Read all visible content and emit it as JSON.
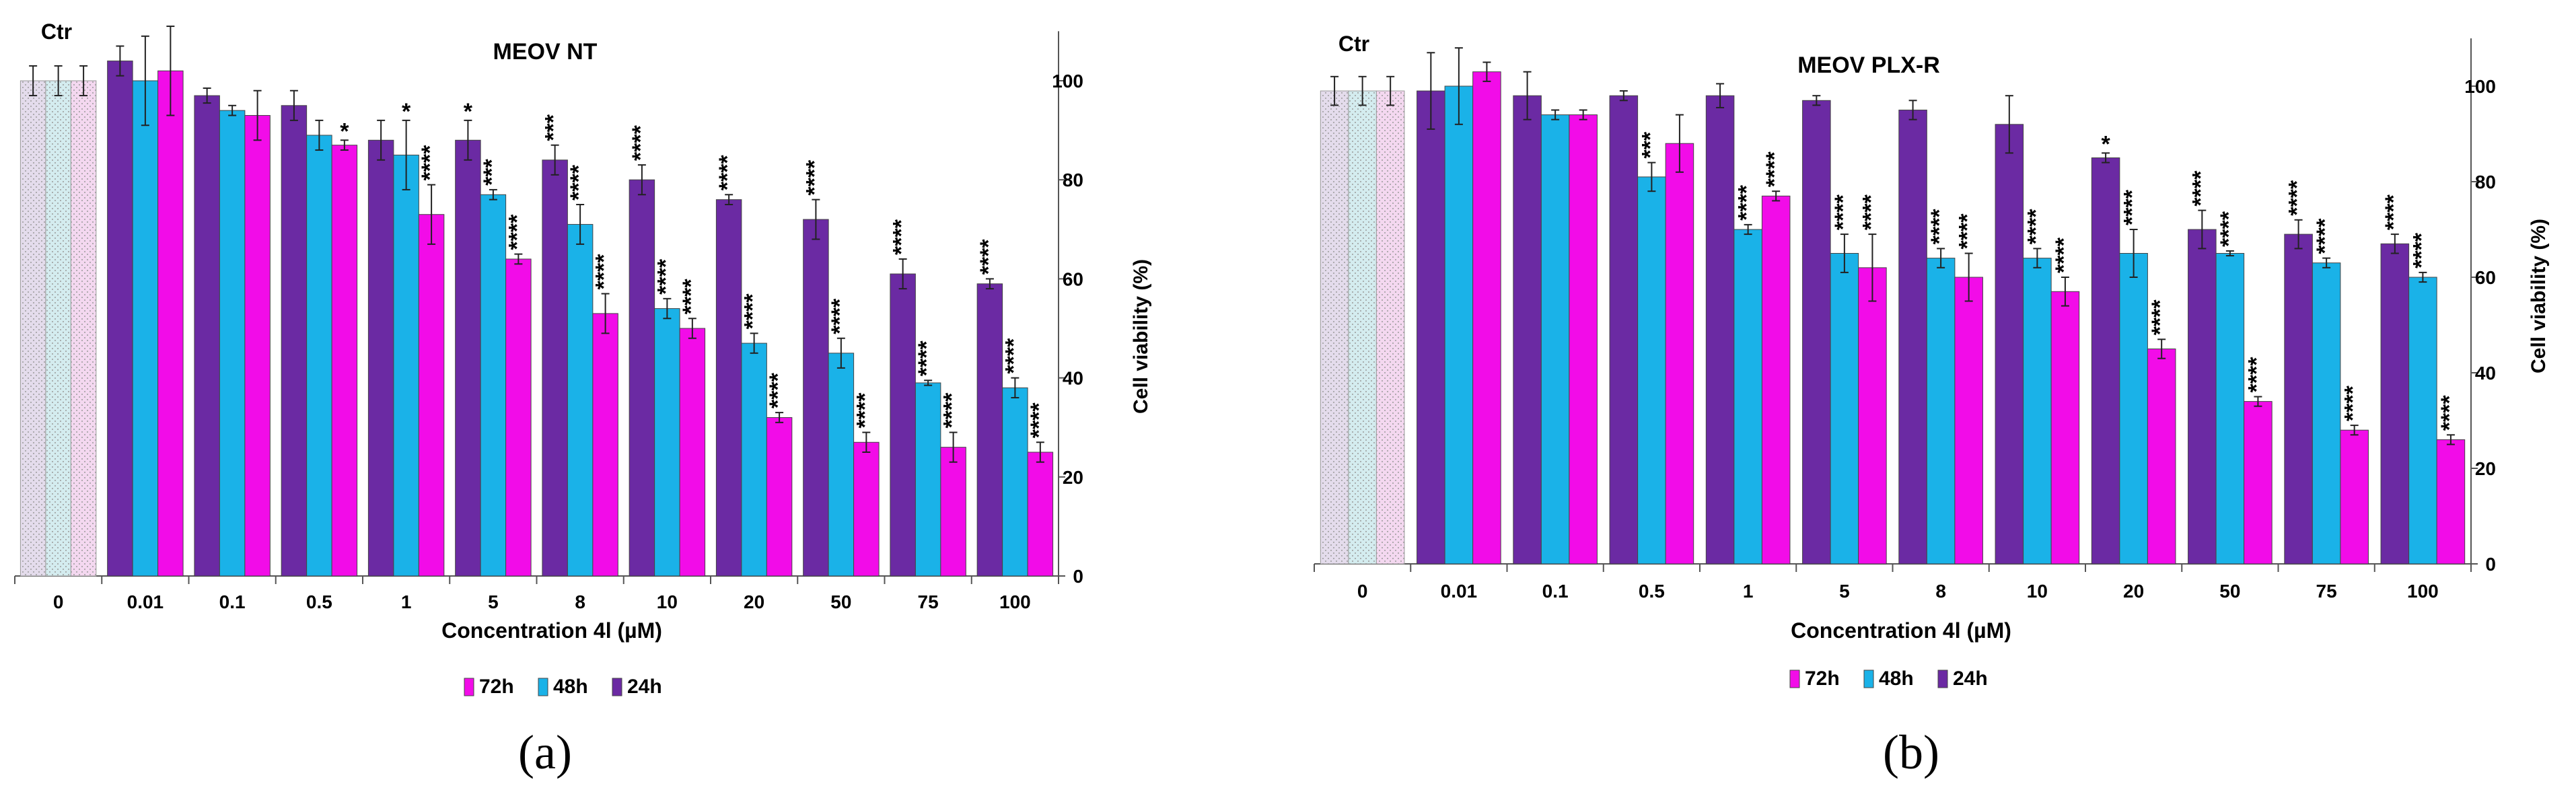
{
  "colors": {
    "h72": "#f20ce8",
    "h48": "#1ab2e8",
    "h24": "#6b2aa3",
    "ctr72": "#f4d8f0",
    "ctr48": "#d4ecef",
    "ctr24": "#e4dcec",
    "axis": "#555555"
  },
  "chart_data": [
    {
      "type": "bar",
      "panel": "(a)",
      "title": "MEOV NT",
      "xlabel": "Concentration 4l (µM)",
      "ylabel": "Cell viability (%)",
      "ylim": [
        0,
        110
      ],
      "yticks": [
        0,
        20,
        40,
        60,
        80,
        100
      ],
      "control_label": "Ctr",
      "categories": [
        "0",
        "0.01",
        "0.1",
        "0.5",
        "1",
        "5",
        "8",
        "10",
        "20",
        "50",
        "75",
        "100"
      ],
      "legend": [
        "72h",
        "48h",
        "24h"
      ],
      "series": [
        {
          "name": "24h",
          "values": [
            100,
            104,
            97,
            95,
            88,
            88,
            84,
            80,
            76,
            72,
            61,
            59
          ],
          "errors": [
            3,
            3,
            1.5,
            3,
            4,
            4,
            3,
            3,
            1,
            4,
            3,
            1
          ],
          "labels": [
            "",
            "",
            "",
            "",
            "",
            "*",
            "***",
            "****",
            "****",
            "****",
            "****",
            "****"
          ]
        },
        {
          "name": "48h",
          "values": [
            100,
            100,
            94,
            89,
            85,
            77,
            71,
            54,
            47,
            45,
            39,
            38
          ],
          "errors": [
            3,
            9,
            1,
            3,
            7,
            1,
            4,
            2,
            2,
            3,
            0.5,
            2
          ],
          "labels": [
            "",
            "",
            "",
            "",
            "*",
            "***",
            "****",
            "****",
            "****",
            "****",
            "****",
            "****"
          ]
        },
        {
          "name": "72h",
          "values": [
            100,
            102,
            93,
            87,
            73,
            64,
            53,
            50,
            32,
            27,
            26,
            25
          ],
          "errors": [
            3,
            9,
            5,
            1,
            6,
            1,
            4,
            2,
            1,
            2,
            3,
            2
          ],
          "labels": [
            "",
            "",
            "",
            "*",
            "****",
            "****",
            "****",
            "****",
            "****",
            "****",
            "****",
            "****"
          ]
        }
      ]
    },
    {
      "type": "bar",
      "panel": "(b)",
      "title": "MEOV PLX-R",
      "xlabel": "Concentration 4l (µM)",
      "ylabel": "Cell viability (%)",
      "ylim": [
        0,
        110
      ],
      "yticks": [
        0,
        20,
        40,
        60,
        80,
        100
      ],
      "control_label": "Ctr",
      "categories": [
        "0",
        "0.01",
        "0.1",
        "0.5",
        "1",
        "5",
        "8",
        "10",
        "20",
        "50",
        "75",
        "100"
      ],
      "legend": [
        "72h",
        "48h",
        "24h"
      ],
      "series": [
        {
          "name": "24h",
          "values": [
            99,
            99,
            98,
            98,
            98,
            97,
            95,
            92,
            85,
            70,
            69,
            67
          ],
          "errors": [
            3,
            8,
            5,
            1,
            2.5,
            1,
            2,
            6,
            1,
            4,
            3,
            2
          ],
          "labels": [
            "",
            "",
            "",
            "",
            "",
            "",
            "",
            "",
            "*",
            "****",
            "****",
            "****"
          ]
        },
        {
          "name": "48h",
          "values": [
            99,
            100,
            94,
            81,
            70,
            65,
            64,
            64,
            65,
            65,
            63,
            60
          ],
          "errors": [
            3,
            8,
            1,
            3,
            1,
            4,
            2,
            2,
            5,
            0.5,
            1,
            1
          ],
          "labels": [
            "",
            "",
            "",
            "***",
            "****",
            "****",
            "****",
            "****",
            "****",
            "****",
            "****",
            "****"
          ]
        },
        {
          "name": "72h",
          "values": [
            99,
            103,
            94,
            88,
            77,
            62,
            60,
            57,
            45,
            34,
            28,
            26
          ],
          "errors": [
            3,
            2,
            1,
            6,
            1,
            7,
            5,
            3,
            2,
            1,
            1,
            1
          ],
          "labels": [
            "",
            "",
            "",
            "",
            "****",
            "****",
            "****",
            "****",
            "****",
            "****",
            "****",
            "****"
          ]
        }
      ]
    }
  ]
}
